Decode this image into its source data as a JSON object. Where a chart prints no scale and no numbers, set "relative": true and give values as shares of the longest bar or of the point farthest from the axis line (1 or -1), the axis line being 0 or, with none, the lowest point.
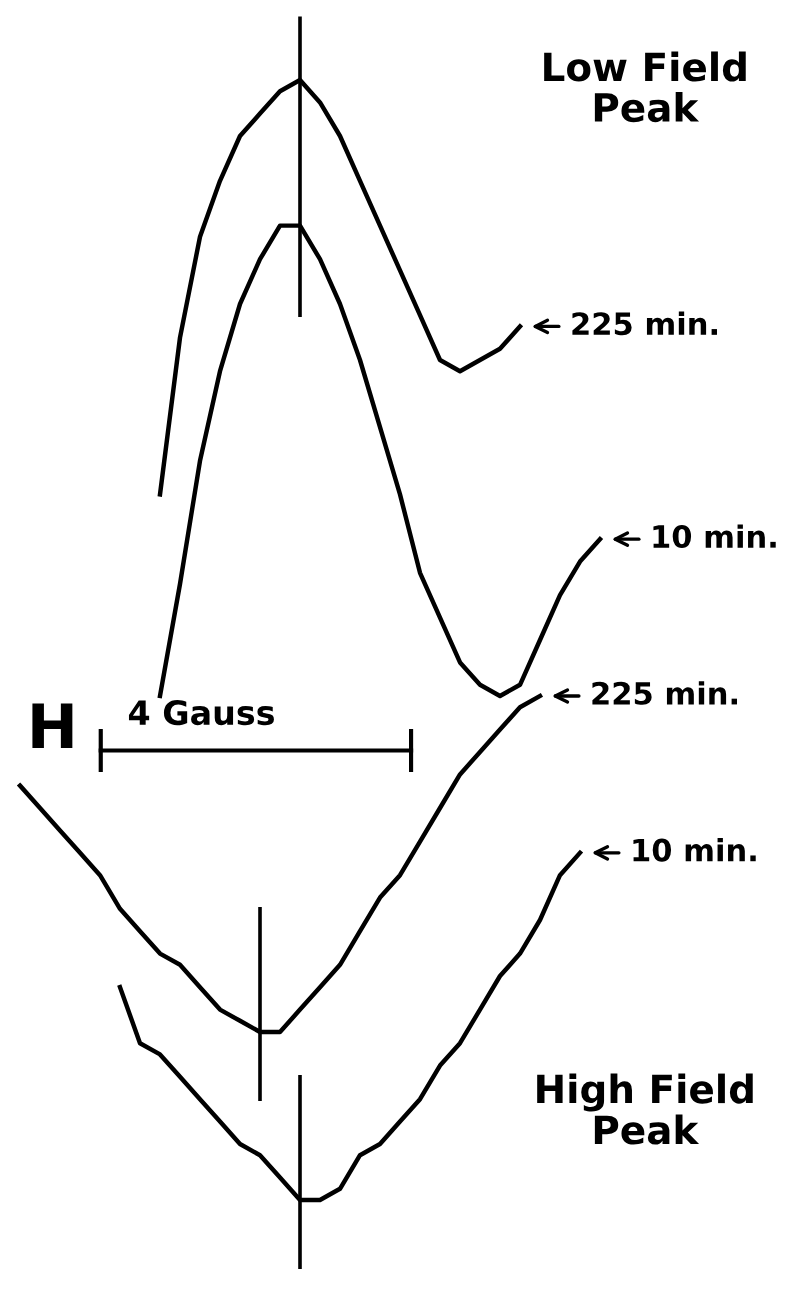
{
  "chart_data": {
    "type": "line",
    "relative": true,
    "categories": [
      null,
      null,
      null,
      null,
      null,
      null,
      null,
      null,
      null,
      null,
      null,
      null,
      null,
      null,
      null,
      null,
      null,
      null,
      null,
      null,
      null,
      null,
      null,
      null,
      null,
      null,
      null,
      null,
      null,
      null
    ],
    "series": [
      {
        "name": "225 min.",
        "color": "#000000",
        "values": [
          null,
          null,
          null,
          null,
          null,
          null,
          null,
          0.63,
          0.77,
          0.86,
          0.91,
          0.95,
          0.97,
          0.99,
          1.0,
          0.98,
          0.95,
          0.91,
          0.87,
          0.83,
          0.79,
          0.75,
          0.74,
          0.75,
          0.76,
          0.78,
          null,
          null,
          null,
          null
        ]
      },
      {
        "name": "10 min.",
        "color": "#000000",
        "values": [
          null,
          null,
          null,
          null,
          null,
          null,
          null,
          0.45,
          0.55,
          0.66,
          0.74,
          0.8,
          0.84,
          0.87,
          0.87,
          0.84,
          0.8,
          0.75,
          0.69,
          0.63,
          0.56,
          0.52,
          0.48,
          0.46,
          0.45,
          0.46,
          0.5,
          0.54,
          0.57,
          0.59
        ]
      },
      {
        "name": "225 min.",
        "color": "#000000",
        "values": [
          0.37,
          0.35,
          0.33,
          0.31,
          0.29,
          0.26,
          0.24,
          0.22,
          0.21,
          0.19,
          0.17,
          0.16,
          0.15,
          0.15,
          0.17,
          0.19,
          0.21,
          0.24,
          0.27,
          0.29,
          0.32,
          0.35,
          0.38,
          0.4,
          0.42,
          0.44,
          0.45,
          null,
          null,
          null
        ]
      },
      {
        "name": "10 min.",
        "color": "#000000",
        "values": [
          null,
          null,
          null,
          null,
          null,
          0.19,
          0.14,
          0.13,
          0.11,
          0.09,
          0.07,
          0.05,
          0.04,
          0.02,
          0.0,
          0.0,
          0.01,
          0.04,
          0.05,
          0.07,
          0.09,
          0.12,
          0.14,
          0.17,
          0.2,
          0.22,
          0.25,
          0.29,
          0.31,
          null
        ]
      }
    ],
    "annotations": [
      "Low Field\nPeak",
      "High Field\nPeak",
      "H",
      "4 Gauss"
    ],
    "legend": "right",
    "line_style": "solid",
    "marker": "none"
  }
}
